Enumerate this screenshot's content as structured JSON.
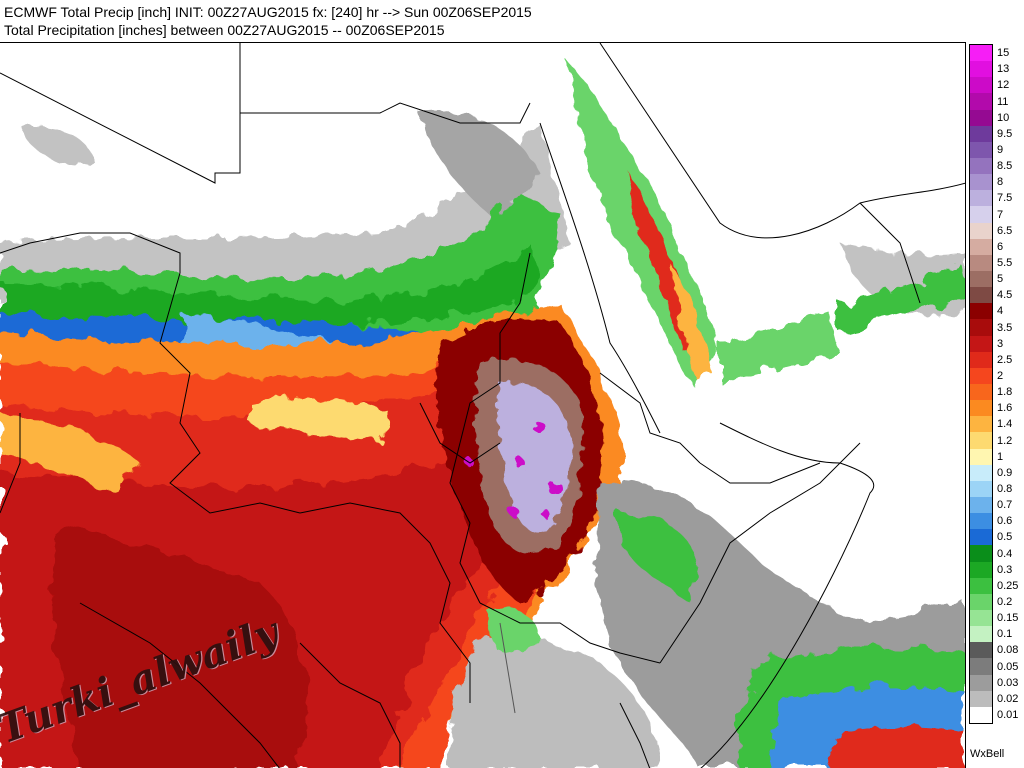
{
  "header": {
    "line1": "ECMWF Total Precip [inch] INIT: 00Z27AUG2015 fx: [240] hr --> Sun 00Z06SEP2015",
    "line2": "Total Precipitation [inches] between 00Z27AUG2015 -- 00Z06SEP2015"
  },
  "legend": {
    "levels": [
      {
        "label": "15",
        "color": "#f61ef6"
      },
      {
        "label": "13",
        "color": "#e10fe0"
      },
      {
        "label": "12",
        "color": "#cc0ac8"
      },
      {
        "label": "11",
        "color": "#b20aab"
      },
      {
        "label": "10",
        "color": "#950a92"
      },
      {
        "label": "9.5",
        "color": "#6e3a9c"
      },
      {
        "label": "9",
        "color": "#7e56ad"
      },
      {
        "label": "8.5",
        "color": "#9473be"
      },
      {
        "label": "8",
        "color": "#a892cf"
      },
      {
        "label": "7.5",
        "color": "#bcb0de"
      },
      {
        "label": "7",
        "color": "#d6d0ec"
      },
      {
        "label": "6.5",
        "color": "#e9d3cc"
      },
      {
        "label": "6",
        "color": "#d5aca1"
      },
      {
        "label": "5.5",
        "color": "#b88a80"
      },
      {
        "label": "5",
        "color": "#9c6e64"
      },
      {
        "label": "4.5",
        "color": "#7e4a44"
      },
      {
        "label": "4",
        "color": "#8b0000"
      },
      {
        "label": "3.5",
        "color": "#a80c0c"
      },
      {
        "label": "3",
        "color": "#c41616"
      },
      {
        "label": "2.5",
        "color": "#e02a1a"
      },
      {
        "label": "2",
        "color": "#f5461e"
      },
      {
        "label": "1.8",
        "color": "#f8661c"
      },
      {
        "label": "1.6",
        "color": "#fb8a20"
      },
      {
        "label": "1.4",
        "color": "#fdb440"
      },
      {
        "label": "1.2",
        "color": "#fdda70"
      },
      {
        "label": "1",
        "color": "#fff6b0"
      },
      {
        "label": "0.9",
        "color": "#c8ecfa"
      },
      {
        "label": "0.8",
        "color": "#9cd4f6"
      },
      {
        "label": "0.7",
        "color": "#6cb2ec"
      },
      {
        "label": "0.6",
        "color": "#3c8ee2"
      },
      {
        "label": "0.5",
        "color": "#1a6ad6"
      },
      {
        "label": "0.4",
        "color": "#0a8e1a"
      },
      {
        "label": "0.3",
        "color": "#1ca824"
      },
      {
        "label": "0.25",
        "color": "#3cc040"
      },
      {
        "label": "0.2",
        "color": "#6ad46a"
      },
      {
        "label": "0.15",
        "color": "#96e494"
      },
      {
        "label": "0.1",
        "color": "#c4f2c2"
      },
      {
        "label": "0.08",
        "color": "#5a5a5a"
      },
      {
        "label": "0.05",
        "color": "#7c7c7c"
      },
      {
        "label": "0.03",
        "color": "#9c9c9c"
      },
      {
        "label": "0.02",
        "color": "#bcbcbc"
      },
      {
        "label": "0.01",
        "color": "#ffffff"
      }
    ]
  },
  "credit": "WxBell",
  "watermark": "Turki_alwaily"
}
